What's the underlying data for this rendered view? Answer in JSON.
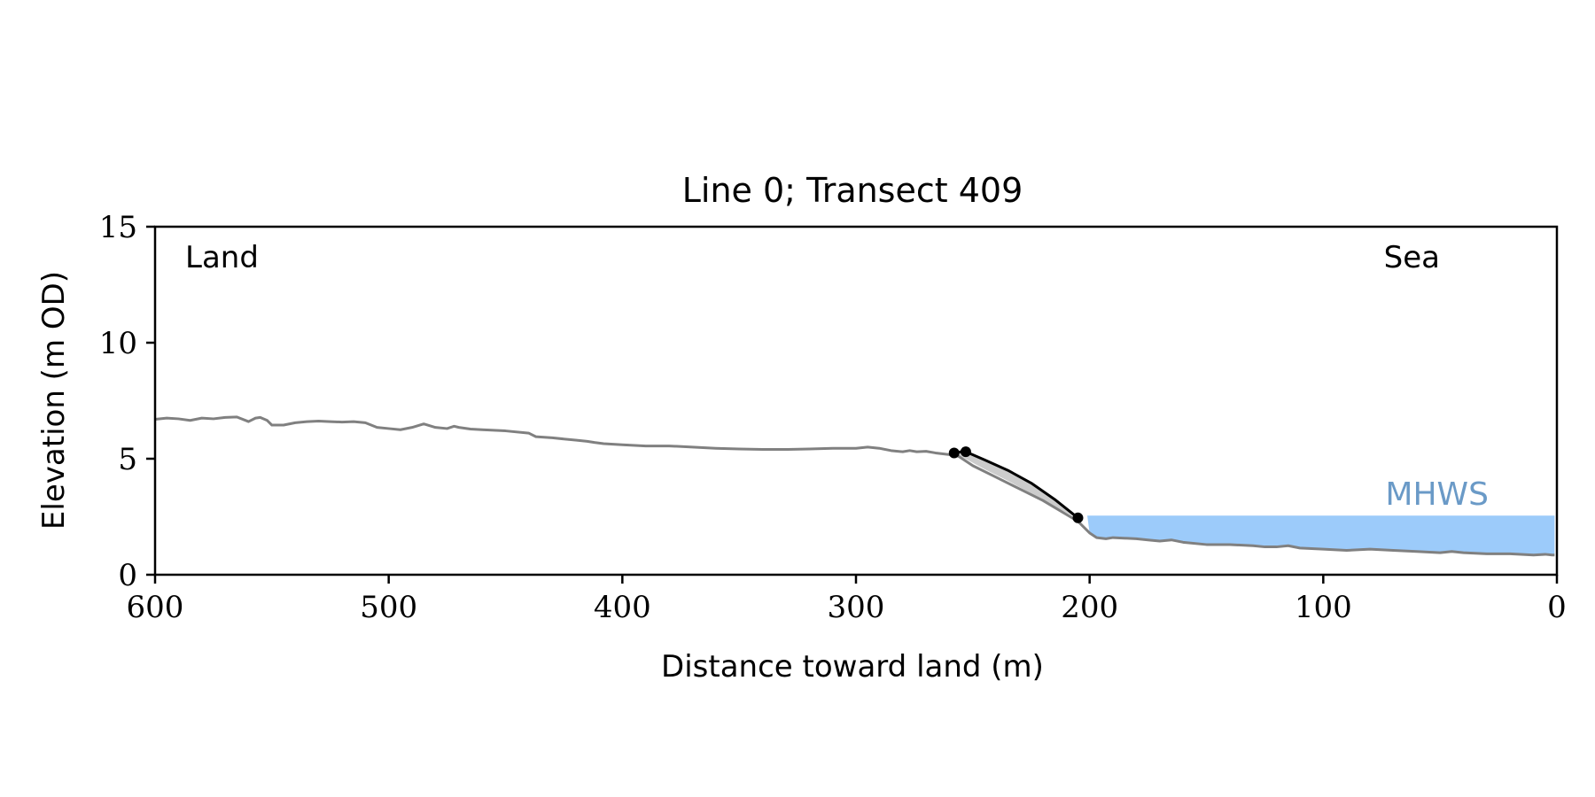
{
  "chart_data": {
    "type": "line",
    "title": "Line 0; Transect 409",
    "xlabel": "Distance toward land (m)",
    "ylabel": "Elevation (m OD)",
    "xlim": [
      600,
      0
    ],
    "ylim": [
      0,
      15
    ],
    "x_reversed": true,
    "xticks": [
      600,
      500,
      400,
      300,
      200,
      100,
      0
    ],
    "yticks": [
      0,
      5,
      10,
      15
    ],
    "grid": false,
    "annotations": {
      "left": "Land",
      "right": "Sea",
      "water_label": "MHWS"
    },
    "water_level": {
      "label": "MHWS",
      "elevation": 2.55,
      "x_from": 201,
      "x_to": 1,
      "color": "#9ccbfa",
      "label_color": "#6a9ac7"
    },
    "profile": {
      "color": "#808080",
      "x": [
        600,
        595,
        590,
        585,
        580,
        575,
        570,
        565,
        560,
        557,
        555,
        552,
        550,
        545,
        540,
        535,
        530,
        525,
        520,
        515,
        510,
        505,
        500,
        495,
        490,
        485,
        480,
        475,
        472,
        470,
        465,
        460,
        450,
        440,
        437,
        430,
        420,
        415,
        412,
        408,
        400,
        390,
        380,
        370,
        360,
        350,
        340,
        330,
        320,
        310,
        300,
        295,
        290,
        285,
        280,
        277,
        274,
        270,
        266,
        262,
        258,
        256,
        250,
        240,
        230,
        220,
        210,
        205,
        202,
        200,
        197,
        193,
        190,
        180,
        175,
        170,
        165,
        160,
        150,
        140,
        130,
        125,
        120,
        115,
        110,
        100,
        90,
        80,
        70,
        60,
        50,
        45,
        40,
        30,
        20,
        10,
        5,
        2,
        1
      ],
      "y": [
        6.7,
        6.75,
        6.72,
        6.65,
        6.75,
        6.72,
        6.78,
        6.8,
        6.6,
        6.75,
        6.78,
        6.65,
        6.45,
        6.45,
        6.55,
        6.6,
        6.62,
        6.6,
        6.58,
        6.6,
        6.55,
        6.35,
        6.3,
        6.25,
        6.35,
        6.5,
        6.35,
        6.3,
        6.4,
        6.35,
        6.28,
        6.25,
        6.2,
        6.1,
        5.95,
        5.9,
        5.8,
        5.75,
        5.7,
        5.65,
        5.6,
        5.55,
        5.55,
        5.5,
        5.45,
        5.42,
        5.4,
        5.4,
        5.42,
        5.45,
        5.45,
        5.5,
        5.45,
        5.35,
        5.3,
        5.35,
        5.3,
        5.32,
        5.25,
        5.2,
        5.15,
        5.1,
        4.7,
        4.2,
        3.7,
        3.2,
        2.6,
        2.3,
        2.0,
        1.8,
        1.6,
        1.55,
        1.6,
        1.55,
        1.5,
        1.45,
        1.5,
        1.4,
        1.3,
        1.3,
        1.25,
        1.2,
        1.2,
        1.25,
        1.15,
        1.1,
        1.05,
        1.1,
        1.05,
        1.0,
        0.95,
        1.0,
        0.95,
        0.9,
        0.9,
        0.85,
        0.88,
        0.85,
        0.85
      ]
    },
    "cliff": {
      "color": "#000000",
      "x": [
        258,
        255,
        253,
        245,
        235,
        225,
        215,
        205
      ],
      "y": [
        5.25,
        5.3,
        5.3,
        4.95,
        4.5,
        3.95,
        3.25,
        2.45
      ],
      "markers": [
        {
          "x": 258,
          "y": 5.25
        },
        {
          "x": 253,
          "y": 5.3
        },
        {
          "x": 205,
          "y": 2.45
        }
      ]
    },
    "slope_band": {
      "color": "#cccccc",
      "upper_x": [
        258,
        253,
        245,
        235,
        225,
        215,
        205
      ],
      "upper_y": [
        5.25,
        5.3,
        4.95,
        4.5,
        3.95,
        3.25,
        2.45
      ],
      "lower_x": [
        205,
        215,
        225,
        235,
        245,
        255,
        258
      ],
      "lower_y": [
        2.4,
        2.95,
        3.5,
        4.05,
        4.55,
        5.1,
        5.2
      ]
    }
  }
}
